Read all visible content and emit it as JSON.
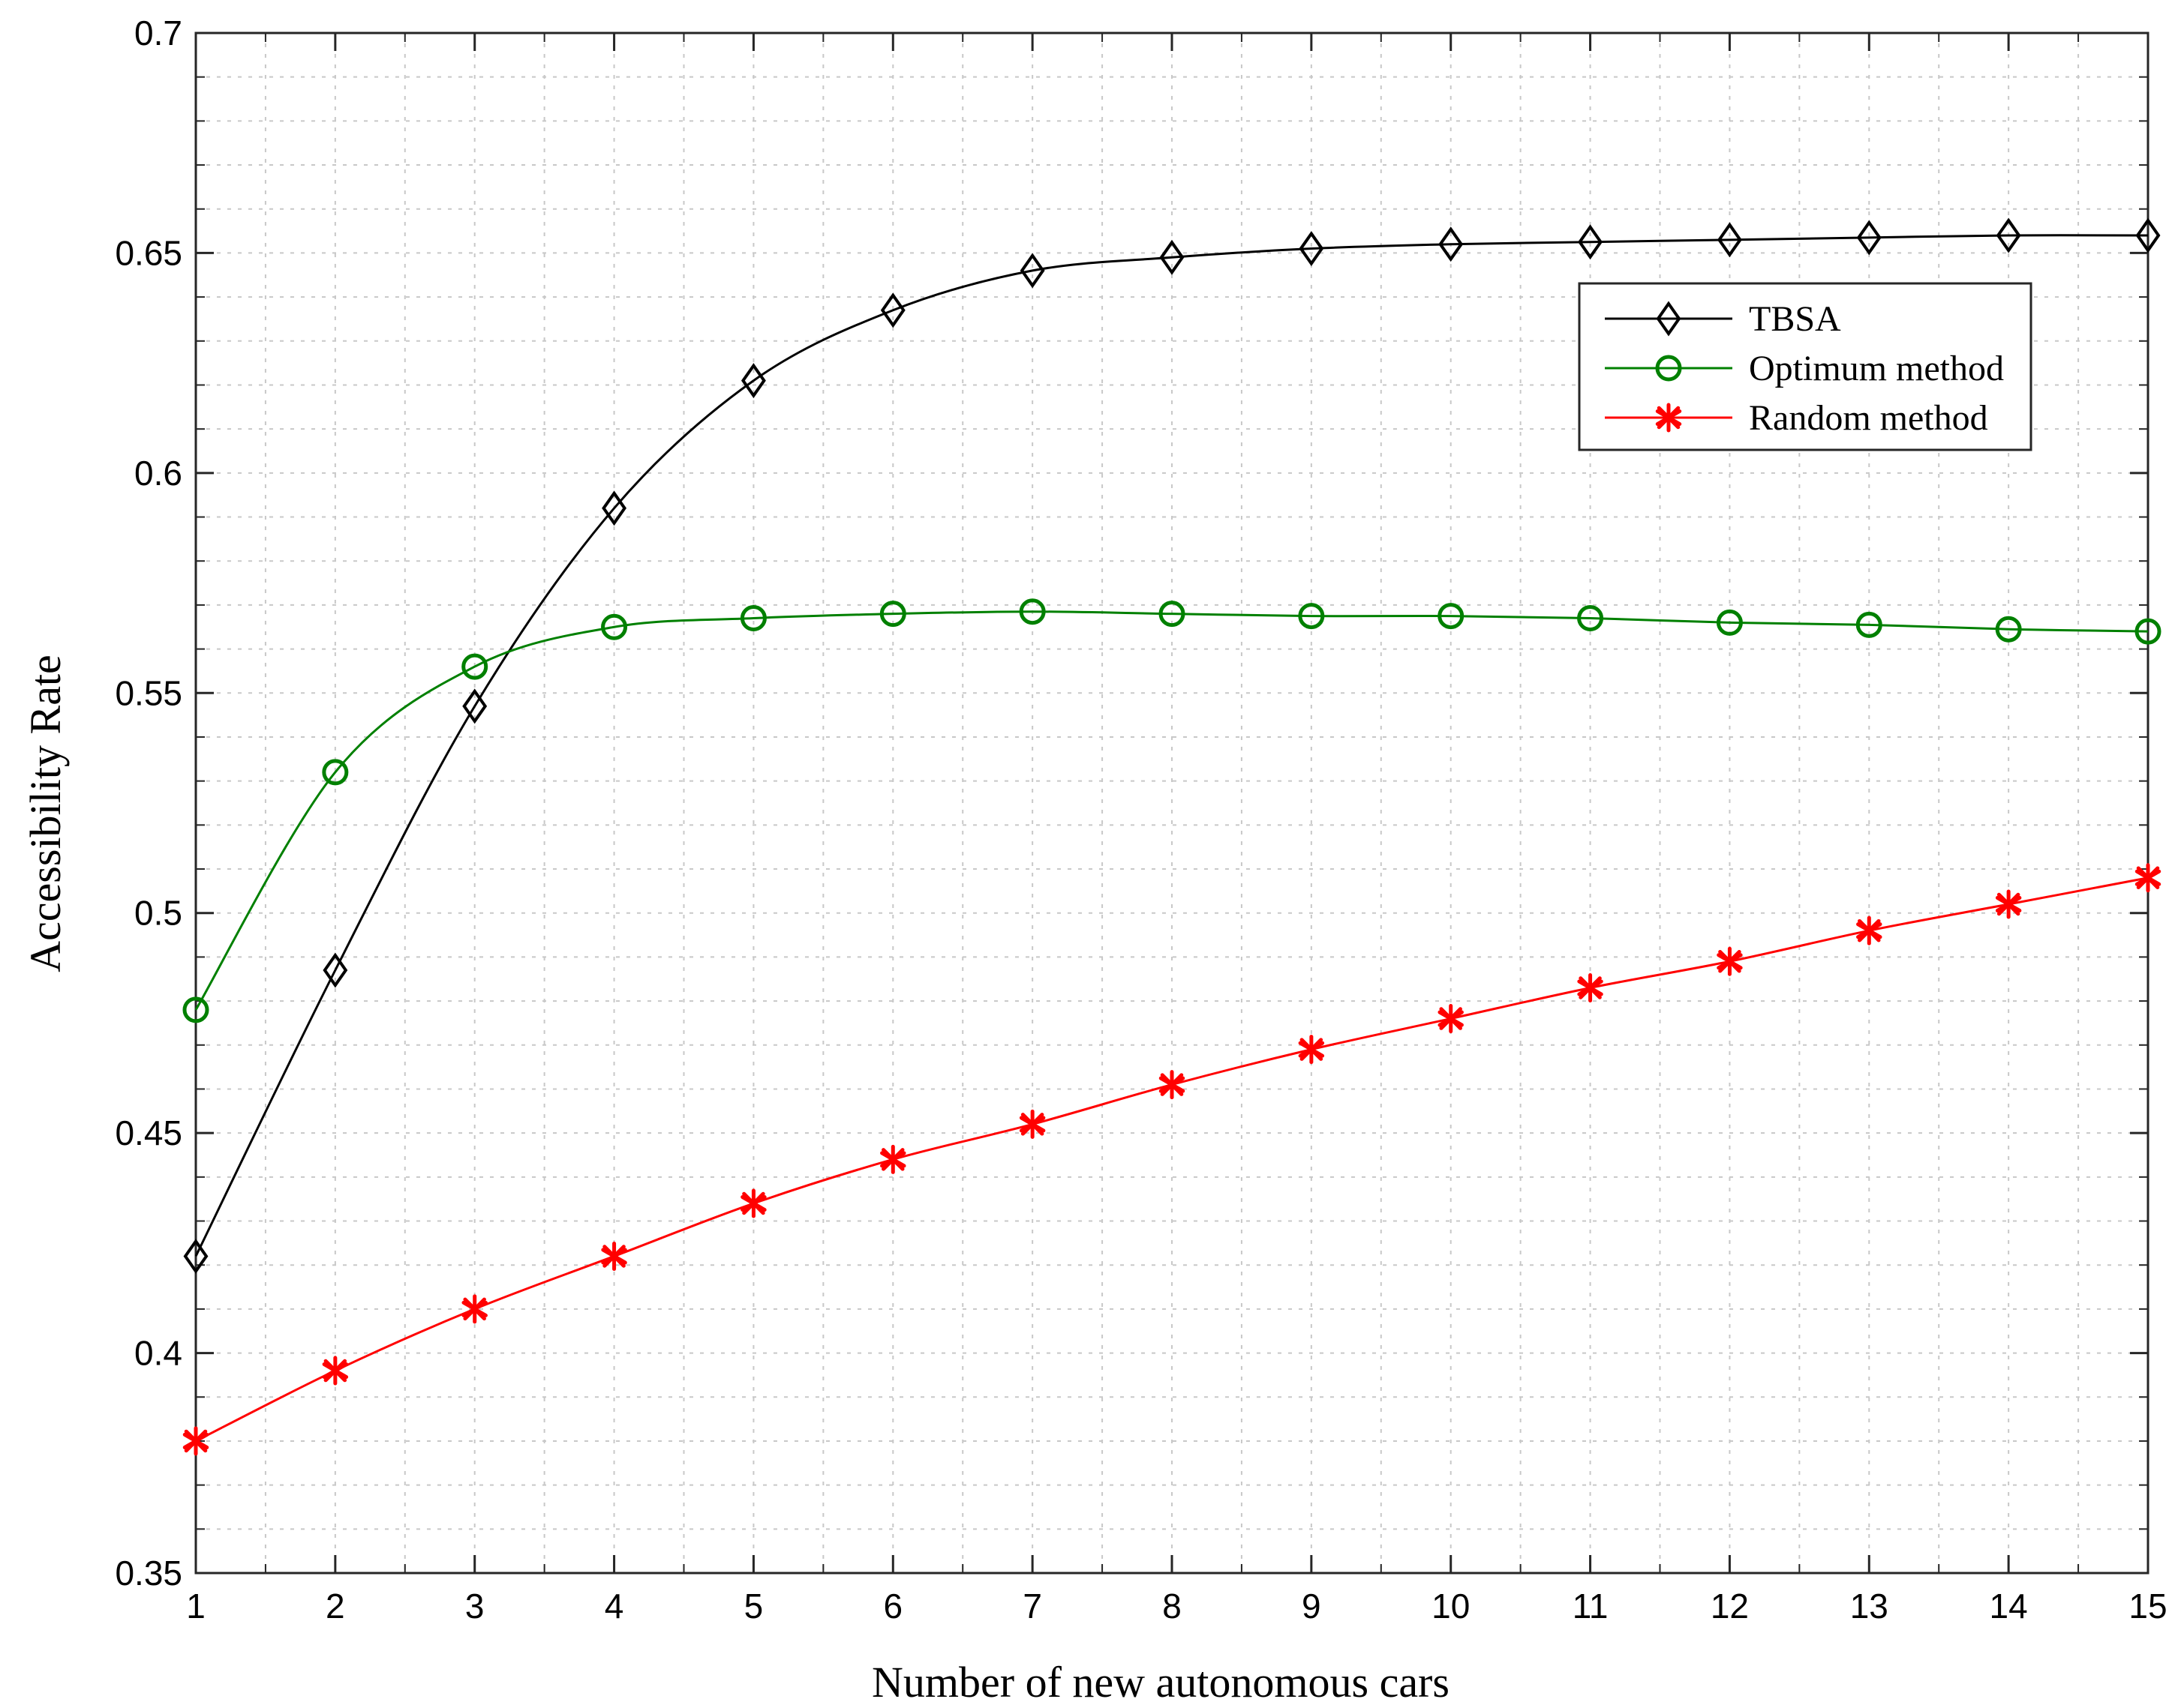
{
  "chart_data": {
    "type": "line",
    "xlabel": "Number of new autonomous cars",
    "ylabel": "Accessibility Rate",
    "xlim": [
      1,
      15
    ],
    "ylim": [
      0.35,
      0.7
    ],
    "x_ticks": [
      1,
      2,
      3,
      4,
      5,
      6,
      7,
      8,
      9,
      10,
      11,
      12,
      13,
      14,
      15
    ],
    "y_ticks": [
      "0.35",
      "0.4",
      "0.45",
      "0.5",
      "0.55",
      "0.6",
      "0.65",
      "0.7"
    ],
    "grid": true,
    "legend_position": "top-right",
    "x": [
      1,
      2,
      3,
      4,
      5,
      6,
      7,
      8,
      9,
      10,
      11,
      12,
      13,
      14,
      15
    ],
    "series": [
      {
        "name": "TBSA",
        "color": "#000000",
        "marker": "diamond",
        "values": [
          0.422,
          0.487,
          0.547,
          0.592,
          0.621,
          0.637,
          0.646,
          0.649,
          0.651,
          0.652,
          0.6525,
          0.653,
          0.6535,
          0.654,
          0.654
        ]
      },
      {
        "name": "Optimum method",
        "color": "#008000",
        "marker": "circle",
        "values": [
          0.478,
          0.532,
          0.556,
          0.565,
          0.567,
          0.568,
          0.5685,
          0.568,
          0.5675,
          0.5675,
          0.567,
          0.566,
          0.5655,
          0.5645,
          0.564
        ]
      },
      {
        "name": "Random method",
        "color": "#ff0000",
        "marker": "asterisk",
        "values": [
          0.38,
          0.396,
          0.41,
          0.422,
          0.434,
          0.444,
          0.452,
          0.461,
          0.469,
          0.476,
          0.483,
          0.489,
          0.496,
          0.502,
          0.508
        ]
      }
    ]
  }
}
